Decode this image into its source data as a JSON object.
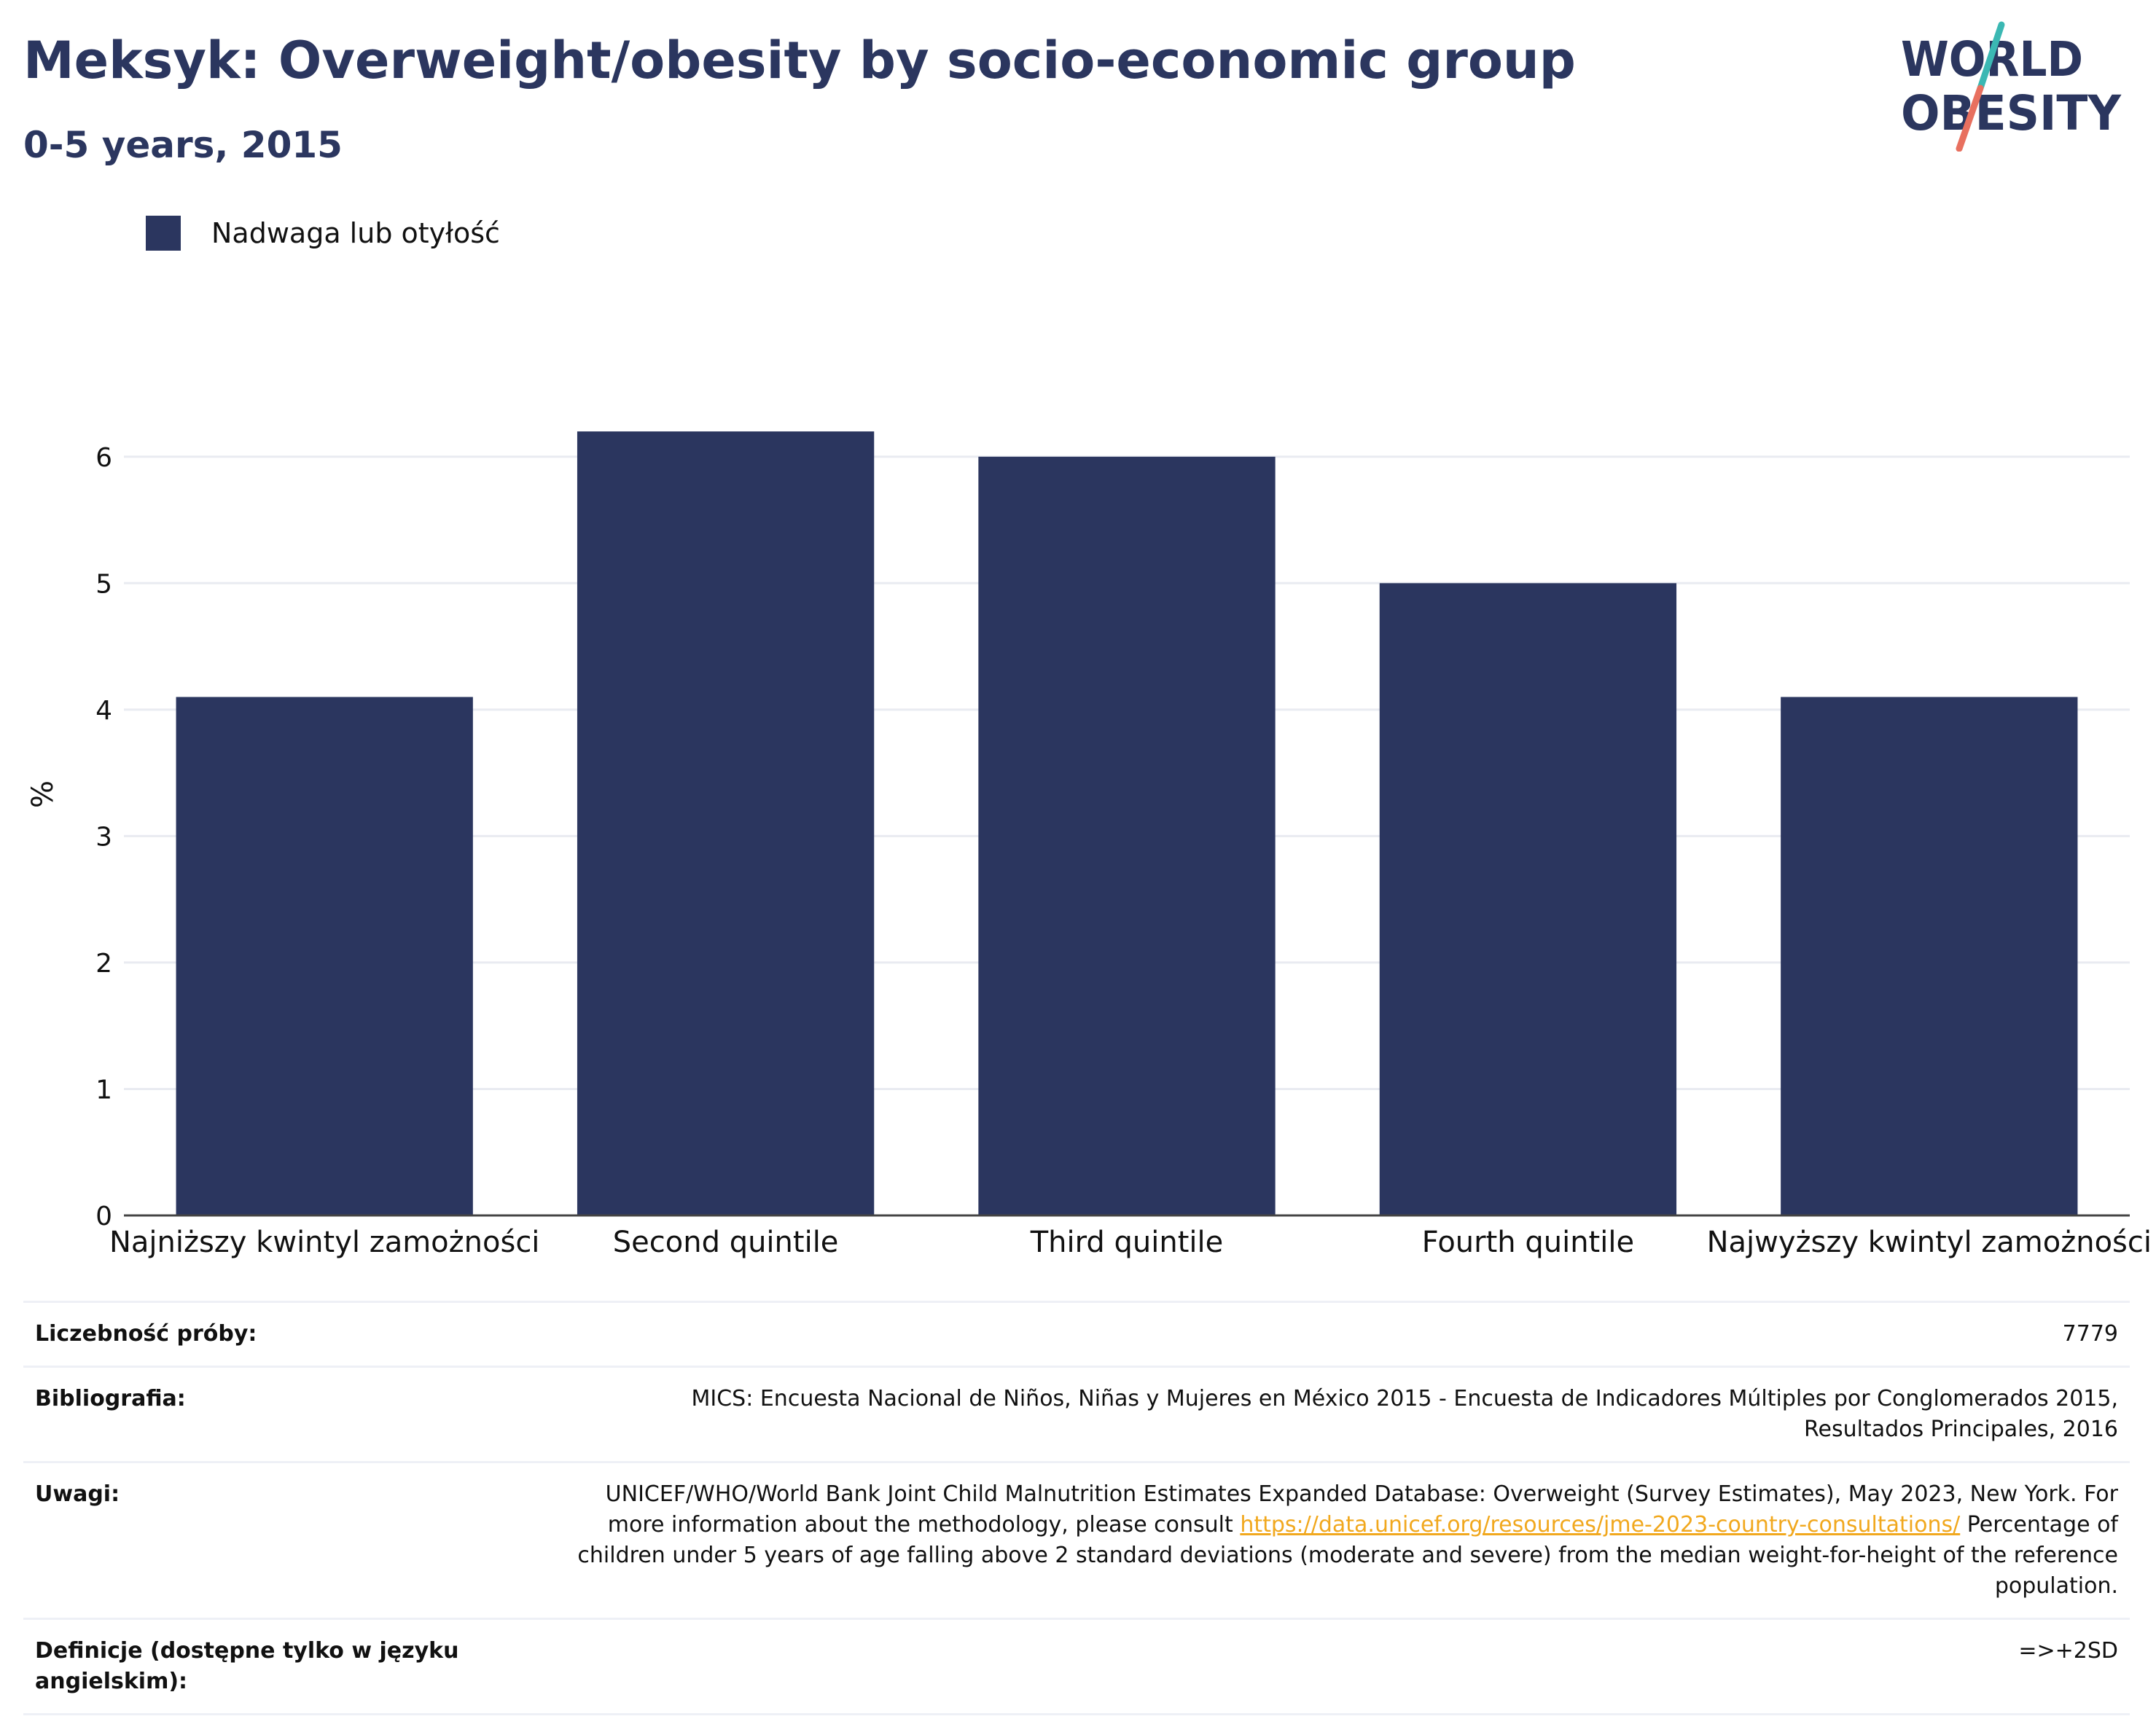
{
  "header": {
    "title": "Meksyk: Overweight/obesity by socio-economic group",
    "subtitle": "0-5 years, 2015"
  },
  "logo": {
    "line1": "WORLD",
    "line2": "OBESITY",
    "colors": {
      "text": "#2b365f",
      "accent_teal": "#3bb8b3",
      "accent_coral": "#e8705f"
    }
  },
  "legend": {
    "label": "Nadwaga lub otyłość",
    "color": "#2b365f"
  },
  "chart_data": {
    "type": "bar",
    "categories": [
      "Najniższy kwintyl zamożności",
      "Second quintile",
      "Third quintile",
      "Fourth quintile",
      "Najwyższy kwintyl zamożności"
    ],
    "series": [
      {
        "name": "Nadwaga lub otyłość",
        "values": [
          4.1,
          6.2,
          6.0,
          5.0,
          4.1
        ]
      }
    ],
    "ylabel": "%",
    "ylim": [
      0,
      6.5
    ],
    "yticks": [
      0,
      1,
      2,
      3,
      4,
      5,
      6
    ],
    "grid": true,
    "legend_position": "top-left",
    "bar_color": "#2b365f",
    "grid_color": "#e9ebf1",
    "axis_color": "#444444"
  },
  "meta": {
    "rows": [
      {
        "label": "Liczebność próby:",
        "value": "7779"
      },
      {
        "label": "Bibliografia:",
        "value": "MICS: Encuesta Nacional de Niños, Niñas y Mujeres en México 2015 - Encuesta de Indicadores Múltiples por Conglomerados 2015, Resultados Principales, 2016"
      },
      {
        "label": "Uwagi:",
        "value_before": "UNICEF/WHO/World Bank Joint Child Malnutrition Estimates Expanded Database: Overweight (Survey Estimates), May 2023, New York. For more information about the methodology, please consult ",
        "link": "https://data.unicef.org/resources/jme-2023-country-consultations/",
        "value_after": " Percentage of children under 5 years of age falling above 2 standard deviations (moderate and severe) from the median weight-for-height of the reference population."
      },
      {
        "label": "Definicje (dostępne tylko w języku angielskim):",
        "value": "=>+2SD"
      }
    ]
  }
}
